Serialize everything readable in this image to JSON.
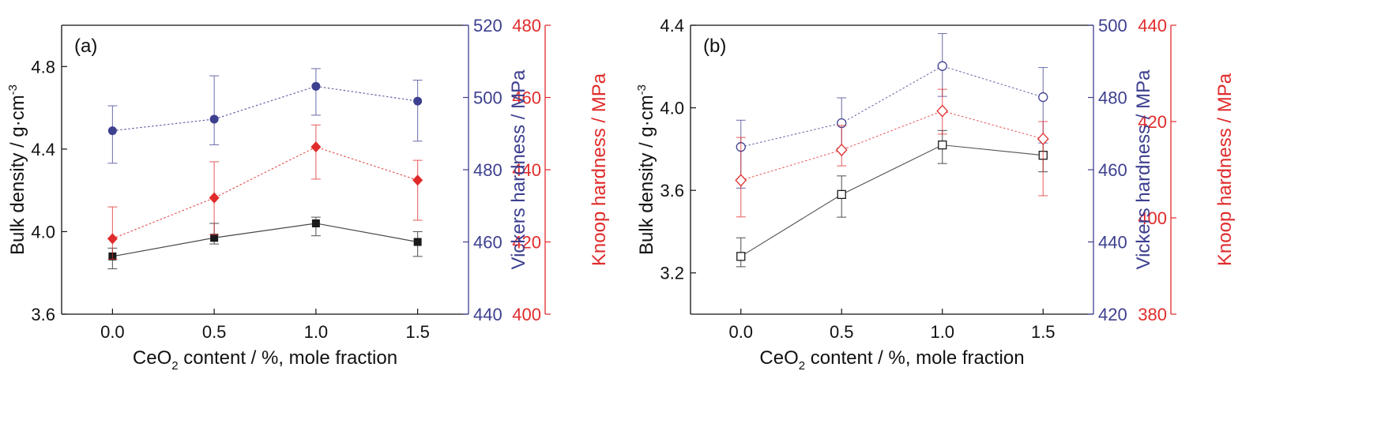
{
  "colors": {
    "density": "#1a1a1a",
    "vickers": "#3d3f8f",
    "knoop": "#e02b2b"
  },
  "chart_data": [
    {
      "type": "line",
      "panel_label": "(a)",
      "x": [
        0.0,
        0.5,
        1.0,
        1.5
      ],
      "xticks": [
        "0.0",
        "0.5",
        "1.0",
        "1.5"
      ],
      "xlim": [
        -0.25,
        1.75
      ],
      "xlabel": {
        "pre": "CeO",
        "sub": "2",
        "post": " content / %, mole fraction"
      },
      "marker_fill": "filled",
      "axes": {
        "left": {
          "label": "Bulk density / g·cm",
          "sup": "-3",
          "ylim": [
            3.6,
            5.0
          ],
          "ticks": [
            3.6,
            4.0,
            4.4,
            4.8
          ],
          "tick_labels": [
            "3.6",
            "4.0",
            "4.4",
            "4.8"
          ]
        },
        "vickers": {
          "label": "Vickers hardness / MPa",
          "ylim": [
            440,
            520
          ],
          "ticks": [
            440,
            460,
            480,
            500,
            520
          ],
          "tick_labels": [
            "440",
            "460",
            "480",
            "500",
            "520"
          ]
        },
        "knoop": {
          "label": "Knoop hardness / MPa",
          "ylim": [
            400,
            480
          ],
          "ticks": [
            400,
            420,
            440,
            460,
            480
          ],
          "tick_labels": [
            "400",
            "420",
            "440",
            "460",
            "480"
          ]
        }
      },
      "series": [
        {
          "axis": "left",
          "marker": "square",
          "line": "solid",
          "color": "#1a1a1a",
          "values": [
            3.88,
            3.97,
            4.04,
            3.95
          ],
          "err_low": [
            3.82,
            3.94,
            3.98,
            3.88
          ],
          "err_high": [
            3.92,
            4.04,
            4.07,
            4.0
          ]
        },
        {
          "axis": "vickers",
          "marker": "circle",
          "line": "dotted",
          "color": "#3d3f8f",
          "values": [
            490.8,
            494.0,
            503.1,
            499.0
          ],
          "err_low": [
            481.8,
            486.9,
            495.1,
            487.9
          ],
          "err_high": [
            497.7,
            506.0,
            508.0,
            504.8
          ]
        },
        {
          "axis": "knoop",
          "marker": "diamond",
          "line": "dotted",
          "color": "#e02b2b",
          "values": [
            420.9,
            432.2,
            446.3,
            437.1
          ],
          "err_low": [
            415.2,
            422.0,
            437.4,
            426.0
          ],
          "err_high": [
            429.7,
            442.2,
            452.4,
            442.6
          ]
        }
      ]
    },
    {
      "type": "line",
      "panel_label": "(b)",
      "x": [
        0.0,
        0.5,
        1.0,
        1.5
      ],
      "xticks": [
        "0.0",
        "0.5",
        "1.0",
        "1.5"
      ],
      "xlim": [
        -0.25,
        1.75
      ],
      "xlabel": {
        "pre": "CeO",
        "sub": "2",
        "post": " content / %, mole fraction"
      },
      "marker_fill": "open",
      "axes": {
        "left": {
          "label": "Bulk density / g·cm",
          "sup": "-3",
          "ylim": [
            3.0,
            4.4
          ],
          "ticks": [
            3.2,
            3.6,
            4.0,
            4.4
          ],
          "tick_labels": [
            "3.2",
            "3.6",
            "4.0",
            "4.4"
          ]
        },
        "vickers": {
          "label": "Vickers hardness / MPa",
          "ylim": [
            420,
            500
          ],
          "ticks": [
            420,
            440,
            460,
            480,
            500
          ],
          "tick_labels": [
            "420",
            "440",
            "460",
            "480",
            "500"
          ]
        },
        "knoop": {
          "label": "Knoop hardness / MPa",
          "ylim": [
            380,
            440
          ],
          "ticks": [
            380,
            400,
            420,
            440
          ],
          "tick_labels": [
            "380",
            "400",
            "420",
            "440"
          ]
        }
      },
      "series": [
        {
          "axis": "left",
          "marker": "square",
          "line": "solid",
          "color": "#1a1a1a",
          "values": [
            3.28,
            3.58,
            3.82,
            3.77
          ],
          "err_low": [
            3.23,
            3.47,
            3.73,
            3.69
          ],
          "err_high": [
            3.37,
            3.67,
            3.89,
            3.85
          ]
        },
        {
          "axis": "vickers",
          "marker": "circle",
          "line": "dotted",
          "color": "#3d3f8f",
          "values": [
            466.3,
            472.9,
            488.7,
            480.1
          ],
          "err_low": [
            454.9,
            466.0,
            480.3,
            467.4
          ],
          "err_high": [
            473.7,
            479.9,
            497.7,
            488.3
          ]
        },
        {
          "axis": "knoop",
          "marker": "diamond",
          "line": "dotted",
          "color": "#e02b2b",
          "values": [
            407.8,
            414.1,
            422.2,
            416.4
          ],
          "err_low": [
            400.2,
            410.8,
            417.4,
            404.6
          ],
          "err_high": [
            416.7,
            419.2,
            426.7,
            420.0
          ]
        }
      ]
    }
  ]
}
